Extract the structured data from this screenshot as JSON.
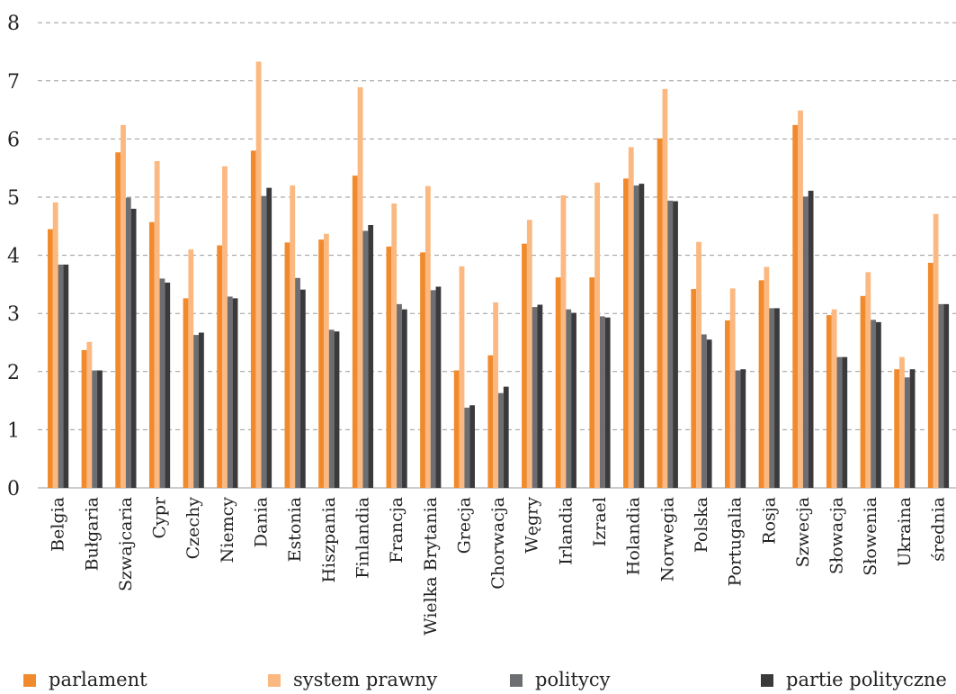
{
  "chart_data": {
    "type": "bar",
    "title": "",
    "xlabel": "",
    "ylabel": "",
    "ylim": [
      0,
      8
    ],
    "yticks": [
      0,
      1,
      2,
      3,
      4,
      5,
      6,
      7,
      8
    ],
    "grid": true,
    "legend_position": "bottom",
    "categories": [
      "Belgia",
      "Bułgaria",
      "Szwajcaria",
      "Cypr",
      "Czechy",
      "Niemcy",
      "Dania",
      "Estonia",
      "Hiszpania",
      "Finlandia",
      "Francja",
      "Wielka Brytania",
      "Grecja",
      "Chorwacja",
      "Węgry",
      "Irlandia",
      "Izrael",
      "Holandia",
      "Norwegia",
      "Polska",
      "Portugalia",
      "Rosja",
      "Szwecja",
      "Słowacja",
      "Słowenia",
      "Ukraina",
      "średnia"
    ],
    "series": [
      {
        "name": "parlament",
        "color": "#f08a2c",
        "values": [
          4.45,
          2.37,
          5.77,
          4.57,
          3.26,
          4.17,
          5.8,
          4.22,
          4.27,
          5.37,
          4.15,
          4.05,
          2.02,
          2.28,
          4.2,
          3.62,
          3.62,
          5.32,
          6.01,
          3.42,
          2.88,
          3.57,
          6.24,
          2.97,
          3.3,
          2.04,
          3.87
        ]
      },
      {
        "name": "system prawny",
        "color": "#fbb880",
        "values": [
          4.91,
          2.51,
          6.24,
          5.62,
          4.1,
          5.53,
          7.33,
          5.2,
          4.37,
          6.89,
          4.89,
          5.19,
          3.81,
          3.19,
          4.61,
          5.03,
          5.25,
          5.86,
          6.86,
          4.23,
          3.43,
          3.8,
          6.49,
          3.07,
          3.71,
          2.25,
          4.71
        ]
      },
      {
        "name": "politycy",
        "color": "#6d6e71",
        "values": [
          3.84,
          2.02,
          4.99,
          3.6,
          2.63,
          3.29,
          5.02,
          3.61,
          2.72,
          4.42,
          3.16,
          3.4,
          1.38,
          1.63,
          3.11,
          3.07,
          2.95,
          5.2,
          4.94,
          2.64,
          2.02,
          3.09,
          5.01,
          2.25,
          2.89,
          1.9,
          3.16
        ]
      },
      {
        "name": "partie polityczne",
        "color": "#3a3a3c",
        "values": [
          3.84,
          2.02,
          4.8,
          3.53,
          2.67,
          3.26,
          5.16,
          3.41,
          2.69,
          4.52,
          3.07,
          3.46,
          1.42,
          1.74,
          3.15,
          3.01,
          2.93,
          5.23,
          4.93,
          2.55,
          2.04,
          3.09,
          5.11,
          2.25,
          2.85,
          2.04,
          3.16
        ]
      }
    ]
  }
}
